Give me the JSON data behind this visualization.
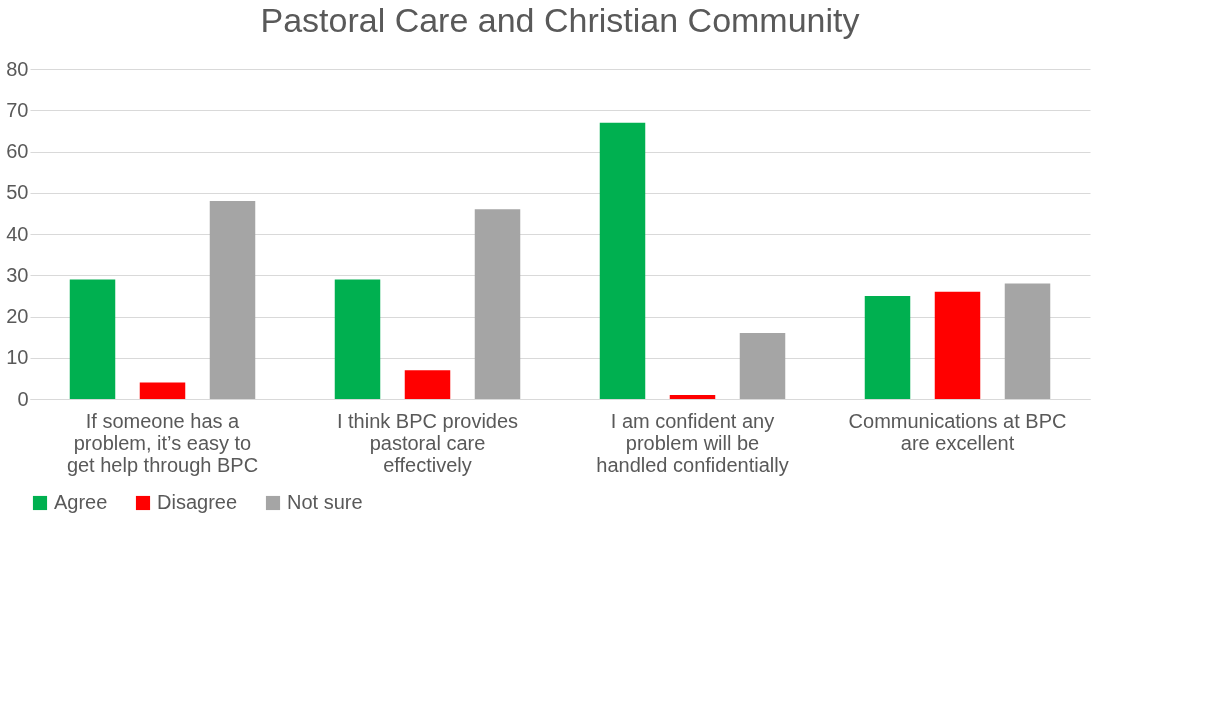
{
  "chart_data": {
    "type": "bar",
    "title": "Pastoral Care and Christian Community",
    "categories": [
      "If someone has a problem, it’s easy to get help through BPC",
      "I think BPC provides pastoral care effectively",
      "I am confident any problem will be handled confidentially",
      "Communications at BPC are excellent"
    ],
    "series": [
      {
        "name": "Agree",
        "color": "#00b050",
        "values": [
          29,
          29,
          67,
          25
        ]
      },
      {
        "name": "Disagree",
        "color": "#ff0000",
        "values": [
          4,
          7,
          1,
          26
        ]
      },
      {
        "name": "Not sure",
        "color": "#a5a5a5",
        "values": [
          48,
          46,
          16,
          28
        ]
      }
    ],
    "ylim": [
      0,
      80
    ],
    "yticks": [
      0,
      10,
      20,
      30,
      40,
      50,
      60,
      70,
      80
    ],
    "grid": "y",
    "legend": "bottom"
  }
}
